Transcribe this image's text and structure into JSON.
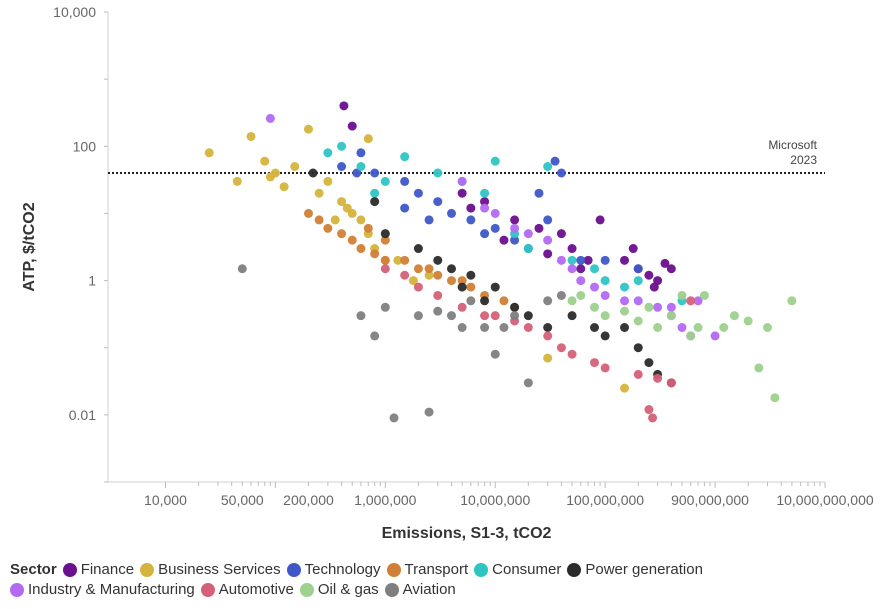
{
  "chart_data": {
    "type": "scatter",
    "title": "",
    "xlabel": "Emissions, S1-3, tCO2",
    "ylabel": "ATP, $/tCO2",
    "x_scale": "log",
    "y_scale": "log",
    "xlim": [
      3000,
      10000000000
    ],
    "ylim": [
      0.001,
      10000
    ],
    "x_tick_values": [
      10000,
      50000,
      200000,
      1000000,
      10000000,
      100000000,
      900000000,
      10000000000
    ],
    "x_tick_labels": [
      "10,000",
      "50,000",
      "200,000",
      "1,000,000",
      "10,000,000",
      "100,000,000",
      "900,000,000",
      "10,000,000,000"
    ],
    "y_tick_values": [
      10000,
      100,
      1,
      0.01
    ],
    "y_tick_labels": [
      "10,000",
      "100",
      "1",
      "0.01"
    ],
    "grid": false,
    "legend": {
      "title": "Sector",
      "position": "bottom"
    },
    "reference_line": {
      "y": 40,
      "label_lines": [
        "Microsoft",
        "2023"
      ],
      "style": "dotted"
    },
    "series": [
      {
        "name": "Finance",
        "color": "#6a0f8e",
        "points": [
          [
            420000.0,
            400
          ],
          [
            500000.0,
            200
          ],
          [
            5000000.0,
            20
          ],
          [
            8000000.0,
            15
          ],
          [
            15000000.0,
            8
          ],
          [
            25000000.0,
            6
          ],
          [
            40000000.0,
            5
          ],
          [
            50000000.0,
            3
          ],
          [
            70000000.0,
            2
          ],
          [
            90000000.0,
            8
          ],
          [
            150000000.0,
            2
          ],
          [
            200000000.0,
            1.5
          ],
          [
            250000000.0,
            1.2
          ],
          [
            300000000.0,
            1
          ],
          [
            350000000.0,
            1.8
          ],
          [
            400000000.0,
            1.5
          ],
          [
            6000000.0,
            12
          ],
          [
            12000000.0,
            4
          ],
          [
            30000000.0,
            2.5
          ],
          [
            60000000.0,
            1.5
          ],
          [
            180000000.0,
            3
          ],
          [
            280000000.0,
            0.8
          ]
        ]
      },
      {
        "name": "Business Services",
        "color": "#d4b43c",
        "points": [
          [
            25000.0,
            80
          ],
          [
            45000.0,
            30
          ],
          [
            60000.0,
            140
          ],
          [
            80000.0,
            60
          ],
          [
            100000.0,
            40
          ],
          [
            150000.0,
            50
          ],
          [
            200000.0,
            180
          ],
          [
            250000.0,
            20
          ],
          [
            300000.0,
            30
          ],
          [
            400000.0,
            15
          ],
          [
            500000.0,
            10
          ],
          [
            600000.0,
            8
          ],
          [
            700000.0,
            5
          ],
          [
            800000.0,
            3
          ],
          [
            1000000.0,
            2
          ],
          [
            1300000.0,
            2
          ],
          [
            1800000.0,
            1
          ],
          [
            700000.0,
            130
          ],
          [
            120000.0,
            25
          ],
          [
            90000.0,
            35
          ],
          [
            350000.0,
            8
          ],
          [
            450000.0,
            12
          ],
          [
            2500000.0,
            1.2
          ],
          [
            30000000.0,
            0.07
          ],
          [
            150000000.0,
            0.025
          ]
        ]
      },
      {
        "name": "Technology",
        "color": "#3f57c8",
        "points": [
          [
            400000.0,
            50
          ],
          [
            550000.0,
            40
          ],
          [
            600000.0,
            80
          ],
          [
            800000.0,
            40
          ],
          [
            1500000.0,
            30
          ],
          [
            2000000.0,
            20
          ],
          [
            3000000.0,
            15
          ],
          [
            4000000.0,
            10
          ],
          [
            6000000.0,
            8
          ],
          [
            8000000.0,
            5
          ],
          [
            10000000.0,
            6
          ],
          [
            15000000.0,
            4
          ],
          [
            20000000.0,
            3
          ],
          [
            25000000.0,
            20
          ],
          [
            30000000.0,
            8
          ],
          [
            35000000.0,
            60
          ],
          [
            40000000.0,
            40
          ],
          [
            60000000.0,
            2
          ],
          [
            100000000.0,
            2
          ],
          [
            200000000.0,
            1.5
          ],
          [
            1500000.0,
            12
          ],
          [
            2500000.0,
            8
          ]
        ]
      },
      {
        "name": "Transport",
        "color": "#d17f36",
        "points": [
          [
            200000.0,
            10
          ],
          [
            250000.0,
            8
          ],
          [
            300000.0,
            6
          ],
          [
            400000.0,
            5
          ],
          [
            500000.0,
            4
          ],
          [
            600000.0,
            3
          ],
          [
            800000.0,
            2.5
          ],
          [
            1000000.0,
            2
          ],
          [
            1500000.0,
            2
          ],
          [
            2000000.0,
            1.5
          ],
          [
            3000000.0,
            1.2
          ],
          [
            4000000.0,
            1
          ],
          [
            6000000.0,
            0.8
          ],
          [
            8000000.0,
            0.6
          ],
          [
            12000000.0,
            0.5
          ],
          [
            15000000.0,
            0.4
          ],
          [
            1000000.0,
            4
          ],
          [
            700000.0,
            6
          ],
          [
            2500000.0,
            1.5
          ],
          [
            5000000.0,
            1
          ]
        ]
      },
      {
        "name": "Consumer",
        "color": "#2ec4c4",
        "points": [
          [
            300000.0,
            80
          ],
          [
            400000.0,
            100
          ],
          [
            600000.0,
            50
          ],
          [
            800000.0,
            20
          ],
          [
            1000000.0,
            30
          ],
          [
            1500000.0,
            70
          ],
          [
            3000000.0,
            40
          ],
          [
            5000000.0,
            30
          ],
          [
            8000000.0,
            20
          ],
          [
            10000000.0,
            60
          ],
          [
            15000000.0,
            5
          ],
          [
            20000000.0,
            3
          ],
          [
            30000000.0,
            50
          ],
          [
            50000000.0,
            2
          ],
          [
            80000000.0,
            1.5
          ],
          [
            100000000.0,
            1
          ],
          [
            150000000.0,
            0.8
          ],
          [
            200000000.0,
            1
          ],
          [
            500000000.0,
            0.5
          ]
        ]
      },
      {
        "name": "Power generation",
        "color": "#2b2b2b",
        "points": [
          [
            220000.0,
            40
          ],
          [
            800000.0,
            15
          ],
          [
            1000000.0,
            5
          ],
          [
            2000000.0,
            3
          ],
          [
            3000000.0,
            2
          ],
          [
            4000000.0,
            1.5
          ],
          [
            5000000.0,
            0.8
          ],
          [
            6000000.0,
            1.2
          ],
          [
            8000000.0,
            0.5
          ],
          [
            10000000.0,
            0.8
          ],
          [
            15000000.0,
            0.4
          ],
          [
            20000000.0,
            0.3
          ],
          [
            30000000.0,
            0.2
          ],
          [
            50000000.0,
            0.3
          ],
          [
            80000000.0,
            0.2
          ],
          [
            100000000.0,
            0.15
          ],
          [
            150000000.0,
            0.2
          ],
          [
            200000000.0,
            0.1
          ],
          [
            300000000.0,
            0.04
          ],
          [
            400000000.0,
            0.03
          ],
          [
            250000000.0,
            0.06
          ]
        ]
      },
      {
        "name": "Industry & Manufacturing",
        "color": "#b36af2",
        "points": [
          [
            90000.0,
            260
          ],
          [
            5000000.0,
            30
          ],
          [
            8000000.0,
            12
          ],
          [
            10000000.0,
            10
          ],
          [
            15000000.0,
            6
          ],
          [
            20000000.0,
            5
          ],
          [
            30000000.0,
            4
          ],
          [
            40000000.0,
            2
          ],
          [
            50000000.0,
            1.5
          ],
          [
            60000000.0,
            1
          ],
          [
            80000000.0,
            0.8
          ],
          [
            100000000.0,
            0.6
          ],
          [
            150000000.0,
            0.5
          ],
          [
            200000000.0,
            0.5
          ],
          [
            300000000.0,
            0.4
          ],
          [
            400000000.0,
            0.3
          ],
          [
            500000000.0,
            0.2
          ],
          [
            600000000.0,
            0.15
          ],
          [
            1000000000.0,
            0.15
          ],
          [
            400000000.0,
            0.4
          ],
          [
            700000000.0,
            0.5
          ]
        ]
      },
      {
        "name": "Automotive",
        "color": "#d46179",
        "points": [
          [
            1000000.0,
            1.5
          ],
          [
            1500000.0,
            1.2
          ],
          [
            2000000.0,
            0.8
          ],
          [
            3000000.0,
            0.6
          ],
          [
            5000000.0,
            0.4
          ],
          [
            8000000.0,
            0.3
          ],
          [
            10000000.0,
            0.3
          ],
          [
            15000000.0,
            0.25
          ],
          [
            20000000.0,
            0.2
          ],
          [
            30000000.0,
            0.15
          ],
          [
            40000000.0,
            0.1
          ],
          [
            50000000.0,
            0.08
          ],
          [
            80000000.0,
            0.06
          ],
          [
            100000000.0,
            0.05
          ],
          [
            200000000.0,
            0.04
          ],
          [
            300000000.0,
            0.035
          ],
          [
            400000000.0,
            0.03
          ],
          [
            250000000.0,
            0.012
          ],
          [
            270000000.0,
            0.009
          ],
          [
            600000000.0,
            0.5
          ]
        ]
      },
      {
        "name": "Oil & gas",
        "color": "#9ed08f",
        "points": [
          [
            50000000.0,
            0.5
          ],
          [
            80000000.0,
            0.4
          ],
          [
            100000000.0,
            0.3
          ],
          [
            150000000.0,
            0.35
          ],
          [
            200000000.0,
            0.25
          ],
          [
            300000000.0,
            0.2
          ],
          [
            400000000.0,
            0.3
          ],
          [
            500000000.0,
            0.6
          ],
          [
            600000000.0,
            0.15
          ],
          [
            800000000.0,
            0.6
          ],
          [
            1200000000.0,
            0.2
          ],
          [
            1500000000.0,
            0.3
          ],
          [
            2000000000.0,
            0.25
          ],
          [
            2500000000.0,
            0.05
          ],
          [
            3000000000.0,
            0.2
          ],
          [
            3500000000.0,
            0.018
          ],
          [
            5000000000.0,
            0.5
          ],
          [
            60000000.0,
            0.6
          ],
          [
            250000000.0,
            0.4
          ],
          [
            700000000.0,
            0.2
          ]
        ]
      },
      {
        "name": "Aviation",
        "color": "#7f7f7f",
        "points": [
          [
            50000.0,
            1.5
          ],
          [
            600000.0,
            0.3
          ],
          [
            800000.0,
            0.15
          ],
          [
            1000000.0,
            0.4
          ],
          [
            1200000.0,
            0.009
          ],
          [
            2000000.0,
            0.3
          ],
          [
            2500000.0,
            0.011
          ],
          [
            3000000.0,
            0.35
          ],
          [
            4000000.0,
            0.3
          ],
          [
            5000000.0,
            0.2
          ],
          [
            6000000.0,
            0.5
          ],
          [
            8000000.0,
            0.2
          ],
          [
            10000000.0,
            0.08
          ],
          [
            12000000.0,
            0.2
          ],
          [
            15000000.0,
            0.3
          ],
          [
            20000000.0,
            0.03
          ],
          [
            30000000.0,
            0.5
          ],
          [
            40000000.0,
            0.6
          ]
        ]
      }
    ]
  }
}
